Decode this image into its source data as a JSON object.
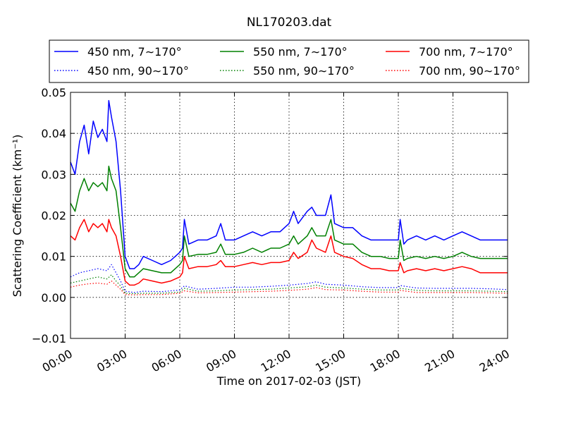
{
  "chart_data": {
    "type": "line",
    "title": "NL170203.dat",
    "xlabel": "Time on 2017-02-03 (JST)",
    "ylabel": "Scattering Coefficient (km⁻¹)",
    "xlim": [
      0,
      24
    ],
    "ylim": [
      -0.01,
      0.05
    ],
    "grid": true,
    "legend_position": "top",
    "x_ticks": [
      0,
      3,
      6,
      9,
      12,
      15,
      18,
      21,
      24
    ],
    "x_tick_labels": [
      "00:00",
      "03:00",
      "06:00",
      "09:00",
      "12:00",
      "15:00",
      "18:00",
      "21:00",
      "24:00"
    ],
    "y_ticks": [
      -0.01,
      0.0,
      0.01,
      0.02,
      0.03,
      0.04,
      0.05
    ],
    "y_tick_labels": [
      "−0.01",
      "0.00",
      "0.01",
      "0.02",
      "0.03",
      "0.04",
      "0.05"
    ],
    "series": [
      {
        "name": "450 nm, 7∼170°",
        "color": "#0000ff",
        "style": "solid",
        "x": [
          0,
          0.25,
          0.5,
          0.75,
          1.0,
          1.25,
          1.5,
          1.75,
          2.0,
          2.1,
          2.25,
          2.5,
          2.75,
          3.0,
          3.25,
          3.5,
          3.75,
          4.0,
          4.5,
          5.0,
          5.5,
          6.0,
          6.15,
          6.25,
          6.5,
          7.0,
          7.5,
          8.0,
          8.25,
          8.5,
          9.0,
          9.5,
          10.0,
          10.5,
          11.0,
          11.5,
          12.0,
          12.25,
          12.5,
          13.0,
          13.25,
          13.5,
          14.0,
          14.3,
          14.5,
          15.0,
          15.5,
          16.0,
          16.5,
          17.0,
          17.5,
          18.0,
          18.1,
          18.3,
          18.5,
          19.0,
          19.5,
          20.0,
          20.5,
          21.0,
          21.5,
          22.0,
          22.5,
          23.0,
          23.5,
          24.0
        ],
        "y": [
          0.033,
          0.03,
          0.038,
          0.042,
          0.035,
          0.043,
          0.039,
          0.041,
          0.038,
          0.048,
          0.044,
          0.038,
          0.026,
          0.01,
          0.007,
          0.007,
          0.008,
          0.01,
          0.009,
          0.008,
          0.009,
          0.011,
          0.012,
          0.019,
          0.013,
          0.014,
          0.014,
          0.015,
          0.018,
          0.014,
          0.014,
          0.015,
          0.016,
          0.015,
          0.016,
          0.016,
          0.018,
          0.021,
          0.018,
          0.021,
          0.022,
          0.02,
          0.02,
          0.025,
          0.018,
          0.017,
          0.017,
          0.015,
          0.014,
          0.014,
          0.014,
          0.014,
          0.019,
          0.013,
          0.014,
          0.015,
          0.014,
          0.015,
          0.014,
          0.015,
          0.016,
          0.015,
          0.014,
          0.014,
          0.014,
          0.014
        ]
      },
      {
        "name": "450 nm, 90∼170°",
        "color": "#0000ff",
        "style": "dotted",
        "x": [
          0,
          0.5,
          1.0,
          1.5,
          2.0,
          2.25,
          2.5,
          2.75,
          3.0,
          3.5,
          4.0,
          5.0,
          6.0,
          6.25,
          7.0,
          8.0,
          9.0,
          10.0,
          11.0,
          12.0,
          13.0,
          13.5,
          14.0,
          15.0,
          16.0,
          17.0,
          18.0,
          18.1,
          19.0,
          20.0,
          21.0,
          22.0,
          23.0,
          24.0
        ],
        "y": [
          0.005,
          0.006,
          0.0065,
          0.007,
          0.0065,
          0.008,
          0.006,
          0.004,
          0.0015,
          0.0012,
          0.0015,
          0.0014,
          0.0018,
          0.0028,
          0.002,
          0.0022,
          0.0025,
          0.0025,
          0.0027,
          0.003,
          0.0034,
          0.0038,
          0.0032,
          0.003,
          0.0026,
          0.0024,
          0.0024,
          0.0029,
          0.0023,
          0.0022,
          0.0022,
          0.0022,
          0.0021,
          0.0019
        ]
      },
      {
        "name": "550 nm, 7∼170°",
        "color": "#008000",
        "style": "solid",
        "x": [
          0,
          0.25,
          0.5,
          0.75,
          1.0,
          1.25,
          1.5,
          1.75,
          2.0,
          2.1,
          2.25,
          2.5,
          2.75,
          3.0,
          3.25,
          3.5,
          3.75,
          4.0,
          4.5,
          5.0,
          5.5,
          6.0,
          6.15,
          6.25,
          6.5,
          7.0,
          7.5,
          8.0,
          8.25,
          8.5,
          9.0,
          9.5,
          10.0,
          10.5,
          11.0,
          11.5,
          12.0,
          12.25,
          12.5,
          13.0,
          13.25,
          13.5,
          14.0,
          14.3,
          14.5,
          15.0,
          15.5,
          16.0,
          16.5,
          17.0,
          17.5,
          18.0,
          18.1,
          18.3,
          18.5,
          19.0,
          19.5,
          20.0,
          20.5,
          21.0,
          21.5,
          22.0,
          22.5,
          23.0,
          23.5,
          24.0
        ],
        "y": [
          0.023,
          0.021,
          0.026,
          0.029,
          0.026,
          0.028,
          0.027,
          0.028,
          0.026,
          0.032,
          0.029,
          0.026,
          0.017,
          0.007,
          0.005,
          0.005,
          0.006,
          0.007,
          0.0065,
          0.006,
          0.006,
          0.008,
          0.009,
          0.015,
          0.01,
          0.0105,
          0.0105,
          0.011,
          0.013,
          0.0105,
          0.0105,
          0.011,
          0.012,
          0.011,
          0.012,
          0.012,
          0.013,
          0.015,
          0.013,
          0.015,
          0.017,
          0.015,
          0.015,
          0.019,
          0.014,
          0.013,
          0.013,
          0.011,
          0.01,
          0.01,
          0.0095,
          0.0095,
          0.014,
          0.009,
          0.0095,
          0.01,
          0.0095,
          0.01,
          0.0095,
          0.01,
          0.011,
          0.01,
          0.0095,
          0.0095,
          0.0095,
          0.0095
        ]
      },
      {
        "name": "550 nm, 90∼170°",
        "color": "#008000",
        "style": "dotted",
        "x": [
          0,
          0.5,
          1.0,
          1.5,
          2.0,
          2.25,
          2.5,
          2.75,
          3.0,
          3.5,
          4.0,
          5.0,
          6.0,
          6.25,
          7.0,
          8.0,
          9.0,
          10.0,
          11.0,
          12.0,
          13.0,
          13.5,
          14.0,
          15.0,
          16.0,
          17.0,
          18.0,
          18.1,
          19.0,
          20.0,
          21.0,
          22.0,
          23.0,
          24.0
        ],
        "y": [
          0.0035,
          0.004,
          0.0045,
          0.005,
          0.0045,
          0.0055,
          0.004,
          0.0028,
          0.001,
          0.0009,
          0.001,
          0.001,
          0.0013,
          0.0022,
          0.0015,
          0.0016,
          0.0018,
          0.0019,
          0.002,
          0.0023,
          0.0026,
          0.003,
          0.0025,
          0.0023,
          0.002,
          0.0018,
          0.0018,
          0.0022,
          0.0017,
          0.0016,
          0.0016,
          0.0016,
          0.0015,
          0.0014
        ]
      },
      {
        "name": "700 nm, 7∼170°",
        "color": "#ff0000",
        "style": "solid",
        "x": [
          0,
          0.25,
          0.5,
          0.75,
          1.0,
          1.25,
          1.5,
          1.75,
          2.0,
          2.1,
          2.25,
          2.5,
          2.75,
          3.0,
          3.25,
          3.5,
          3.75,
          4.0,
          4.5,
          5.0,
          5.5,
          6.0,
          6.15,
          6.25,
          6.5,
          7.0,
          7.5,
          8.0,
          8.25,
          8.5,
          9.0,
          9.5,
          10.0,
          10.5,
          11.0,
          11.5,
          12.0,
          12.25,
          12.5,
          13.0,
          13.25,
          13.5,
          14.0,
          14.3,
          14.5,
          15.0,
          15.5,
          16.0,
          16.5,
          17.0,
          17.5,
          18.0,
          18.1,
          18.3,
          18.5,
          19.0,
          19.5,
          20.0,
          20.5,
          21.0,
          21.5,
          22.0,
          22.5,
          23.0,
          23.5,
          24.0
        ],
        "y": [
          0.015,
          0.014,
          0.017,
          0.019,
          0.016,
          0.018,
          0.017,
          0.018,
          0.016,
          0.019,
          0.017,
          0.015,
          0.01,
          0.004,
          0.003,
          0.003,
          0.0035,
          0.0045,
          0.004,
          0.0035,
          0.004,
          0.005,
          0.006,
          0.01,
          0.007,
          0.0075,
          0.0075,
          0.008,
          0.009,
          0.0075,
          0.0075,
          0.008,
          0.0085,
          0.008,
          0.0085,
          0.0085,
          0.009,
          0.011,
          0.0095,
          0.011,
          0.014,
          0.012,
          0.011,
          0.015,
          0.011,
          0.01,
          0.0095,
          0.008,
          0.007,
          0.007,
          0.0065,
          0.0065,
          0.0085,
          0.006,
          0.0065,
          0.007,
          0.0065,
          0.007,
          0.0065,
          0.007,
          0.0075,
          0.007,
          0.006,
          0.006,
          0.006,
          0.006
        ]
      },
      {
        "name": "700 nm, 90∼170°",
        "color": "#ff0000",
        "style": "dotted",
        "x": [
          0,
          0.5,
          1.0,
          1.5,
          2.0,
          2.25,
          2.5,
          2.75,
          3.0,
          3.5,
          4.0,
          5.0,
          6.0,
          6.25,
          7.0,
          8.0,
          9.0,
          10.0,
          11.0,
          12.0,
          13.0,
          13.5,
          14.0,
          15.0,
          16.0,
          17.0,
          18.0,
          18.1,
          19.0,
          20.0,
          21.0,
          22.0,
          23.0,
          24.0
        ],
        "y": [
          0.0025,
          0.003,
          0.0033,
          0.0035,
          0.0032,
          0.004,
          0.003,
          0.002,
          0.0007,
          0.0006,
          0.0007,
          0.0007,
          0.001,
          0.0016,
          0.0011,
          0.0012,
          0.0013,
          0.0014,
          0.0015,
          0.0017,
          0.002,
          0.0024,
          0.0019,
          0.0018,
          0.0015,
          0.0013,
          0.0013,
          0.0017,
          0.0012,
          0.0012,
          0.0012,
          0.0012,
          0.0011,
          0.001
        ]
      }
    ]
  }
}
